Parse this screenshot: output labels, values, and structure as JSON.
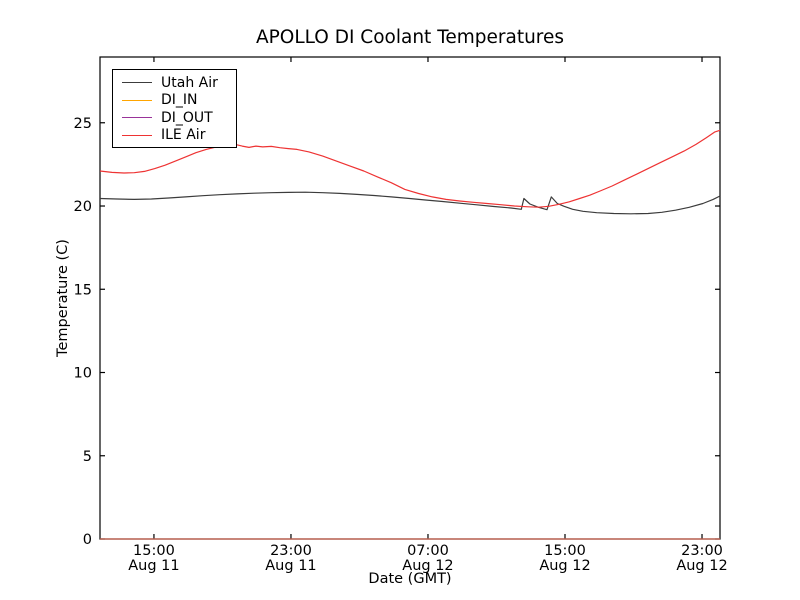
{
  "chart_data": {
    "type": "line",
    "title": "APOLLO DI Coolant Temperatures",
    "xlabel": "Date (GMT)",
    "ylabel": "Temperature (C)",
    "grid": false,
    "legend_position": "upper left",
    "ylim": [
      0,
      28.95
    ],
    "yticks": [
      0,
      5,
      10,
      15,
      20,
      25
    ],
    "xlim_hours": [
      0,
      36.2
    ],
    "xticks": [
      {
        "t": 3.15,
        "time": "15:00",
        "date": "Aug 11"
      },
      {
        "t": 11.15,
        "time": "23:00",
        "date": "Aug 11"
      },
      {
        "t": 19.15,
        "time": "07:00",
        "date": "Aug 12"
      },
      {
        "t": 27.15,
        "time": "15:00",
        "date": "Aug 12"
      },
      {
        "t": 35.15,
        "time": "23:00",
        "date": "Aug 12"
      }
    ],
    "axis_color": "#000000",
    "series": [
      {
        "name": "Utah Air",
        "color": "#3c3c3c",
        "opacity": 1,
        "points": [
          [
            0,
            20.45
          ],
          [
            1,
            20.42
          ],
          [
            2,
            20.4
          ],
          [
            3,
            20.42
          ],
          [
            4,
            20.48
          ],
          [
            5,
            20.55
          ],
          [
            6,
            20.62
          ],
          [
            7,
            20.68
          ],
          [
            8,
            20.73
          ],
          [
            9,
            20.77
          ],
          [
            10,
            20.8
          ],
          [
            11,
            20.82
          ],
          [
            12,
            20.83
          ],
          [
            13,
            20.8
          ],
          [
            14,
            20.76
          ],
          [
            15,
            20.7
          ],
          [
            16,
            20.63
          ],
          [
            17,
            20.55
          ],
          [
            18,
            20.46
          ],
          [
            19,
            20.36
          ],
          [
            20,
            20.27
          ],
          [
            21,
            20.17
          ],
          [
            22,
            20.07
          ],
          [
            23,
            19.97
          ],
          [
            24,
            19.88
          ],
          [
            24.6,
            19.8
          ],
          [
            24.75,
            20.45
          ],
          [
            25.1,
            20.12
          ],
          [
            25.6,
            19.92
          ],
          [
            26.1,
            19.78
          ],
          [
            26.35,
            20.55
          ],
          [
            26.7,
            20.15
          ],
          [
            27.1,
            19.98
          ],
          [
            27.6,
            19.8
          ],
          [
            28.2,
            19.68
          ],
          [
            29,
            19.6
          ],
          [
            30,
            19.55
          ],
          [
            31,
            19.53
          ],
          [
            32,
            19.55
          ],
          [
            32.8,
            19.62
          ],
          [
            33.6,
            19.75
          ],
          [
            34.4,
            19.92
          ],
          [
            35.2,
            20.15
          ],
          [
            35.8,
            20.4
          ],
          [
            36.2,
            20.6
          ]
        ]
      },
      {
        "name": "DI_IN",
        "color": "#ffa500",
        "opacity": 1,
        "points": [
          [
            0,
            0
          ],
          [
            36.2,
            0
          ]
        ]
      },
      {
        "name": "DI_OUT",
        "color": "#993399",
        "opacity": 0.6,
        "points": [
          [
            0,
            0
          ],
          [
            36.2,
            0
          ]
        ]
      },
      {
        "name": "ILE Air",
        "color": "#ee3333",
        "opacity": 1,
        "points": [
          [
            0,
            22.1
          ],
          [
            0.7,
            22.02
          ],
          [
            1.4,
            21.98
          ],
          [
            2,
            22.0
          ],
          [
            2.6,
            22.08
          ],
          [
            3.2,
            22.25
          ],
          [
            3.8,
            22.45
          ],
          [
            4.4,
            22.7
          ],
          [
            5,
            22.95
          ],
          [
            5.6,
            23.2
          ],
          [
            6.2,
            23.4
          ],
          [
            6.8,
            23.55
          ],
          [
            7.4,
            23.65
          ],
          [
            7.9,
            23.7
          ],
          [
            8.3,
            23.6
          ],
          [
            8.7,
            23.52
          ],
          [
            9.1,
            23.6
          ],
          [
            9.5,
            23.55
          ],
          [
            10,
            23.58
          ],
          [
            10.5,
            23.5
          ],
          [
            11,
            23.45
          ],
          [
            11.5,
            23.4
          ],
          [
            12.2,
            23.25
          ],
          [
            13,
            23.0
          ],
          [
            13.8,
            22.7
          ],
          [
            14.6,
            22.4
          ],
          [
            15.4,
            22.1
          ],
          [
            16.2,
            21.75
          ],
          [
            17,
            21.4
          ],
          [
            17.8,
            21.0
          ],
          [
            18.6,
            20.75
          ],
          [
            19.4,
            20.55
          ],
          [
            20.2,
            20.4
          ],
          [
            21,
            20.3
          ],
          [
            21.8,
            20.22
          ],
          [
            22.6,
            20.15
          ],
          [
            23.4,
            20.08
          ],
          [
            24.2,
            20.0
          ],
          [
            25,
            19.95
          ],
          [
            25.6,
            19.93
          ],
          [
            26.2,
            19.98
          ],
          [
            26.8,
            20.1
          ],
          [
            27.4,
            20.25
          ],
          [
            28,
            20.45
          ],
          [
            28.6,
            20.65
          ],
          [
            29.2,
            20.9
          ],
          [
            29.9,
            21.2
          ],
          [
            30.6,
            21.55
          ],
          [
            31.3,
            21.9
          ],
          [
            32,
            22.25
          ],
          [
            32.7,
            22.6
          ],
          [
            33.4,
            22.95
          ],
          [
            34.1,
            23.3
          ],
          [
            34.8,
            23.7
          ],
          [
            35.4,
            24.1
          ],
          [
            35.9,
            24.45
          ],
          [
            36.2,
            24.55
          ]
        ]
      }
    ]
  }
}
